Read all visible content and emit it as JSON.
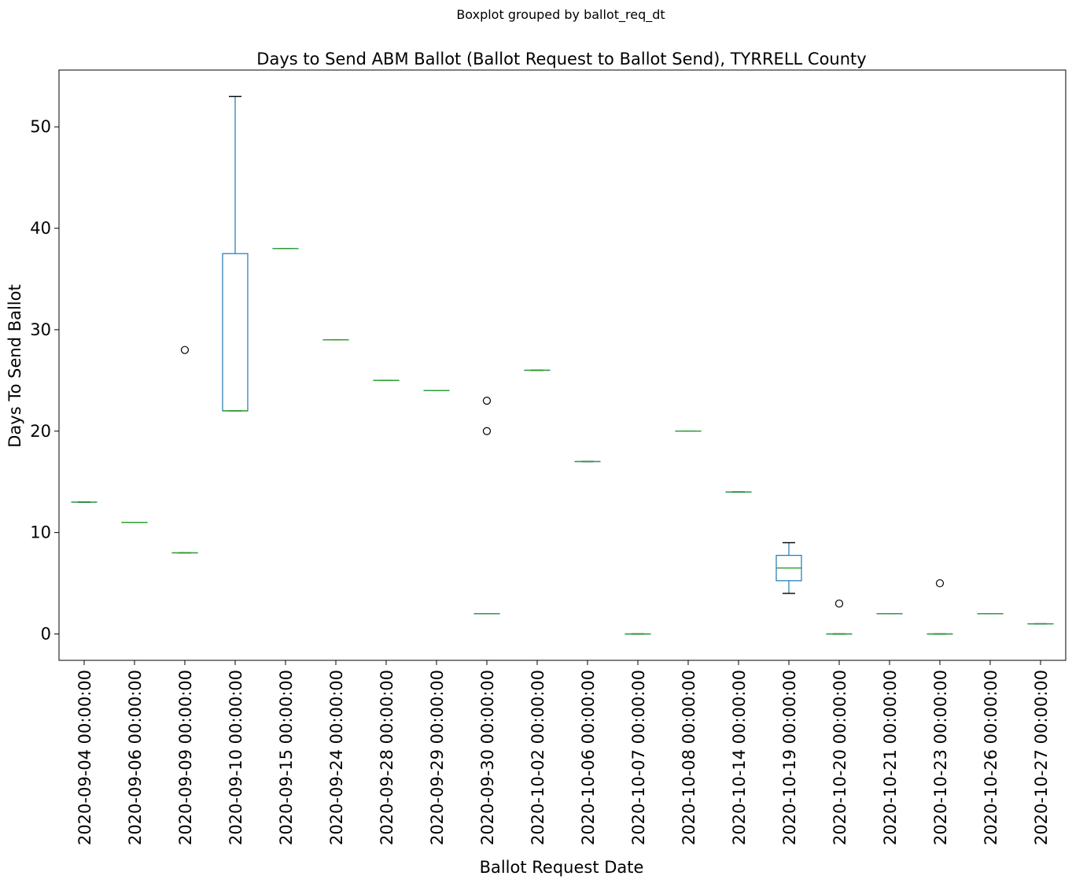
{
  "chart_data": {
    "type": "boxplot",
    "suptitle": "Boxplot grouped by ballot_req_dt",
    "title": "Days to Send ABM Ballot (Ballot Request to Ballot Send), TYRRELL County",
    "xlabel": "Ballot Request Date",
    "ylabel": "Days To Send Ballot",
    "ylim": [
      -2.6,
      55.6
    ],
    "yticks": [
      0,
      10,
      20,
      30,
      40,
      50
    ],
    "grid": false,
    "colors": {
      "box": "#1f77b4",
      "median": "#2ca02c",
      "whisker": "#1f77b4",
      "cap": "#000000",
      "flier": "#000000"
    },
    "categories": [
      "2020-09-04 00:00:00",
      "2020-09-06 00:00:00",
      "2020-09-09 00:00:00",
      "2020-09-10 00:00:00",
      "2020-09-15 00:00:00",
      "2020-09-24 00:00:00",
      "2020-09-28 00:00:00",
      "2020-09-29 00:00:00",
      "2020-09-30 00:00:00",
      "2020-10-02 00:00:00",
      "2020-10-06 00:00:00",
      "2020-10-07 00:00:00",
      "2020-10-08 00:00:00",
      "2020-10-14 00:00:00",
      "2020-10-19 00:00:00",
      "2020-10-20 00:00:00",
      "2020-10-21 00:00:00",
      "2020-10-23 00:00:00",
      "2020-10-26 00:00:00",
      "2020-10-27 00:00:00"
    ],
    "boxes": [
      {
        "whislo": 13,
        "q1": 13,
        "med": 13,
        "q3": 13,
        "whishi": 13,
        "fliers": []
      },
      {
        "whislo": 11,
        "q1": 11,
        "med": 11,
        "q3": 11,
        "whishi": 11,
        "fliers": []
      },
      {
        "whislo": 8,
        "q1": 8,
        "med": 8,
        "q3": 8,
        "whishi": 8,
        "fliers": [
          28
        ]
      },
      {
        "whislo": 22,
        "q1": 22,
        "med": 22,
        "q3": 37.5,
        "whishi": 53,
        "fliers": []
      },
      {
        "whislo": 38,
        "q1": 38,
        "med": 38,
        "q3": 38,
        "whishi": 38,
        "fliers": []
      },
      {
        "whislo": 29,
        "q1": 29,
        "med": 29,
        "q3": 29,
        "whishi": 29,
        "fliers": []
      },
      {
        "whislo": 25,
        "q1": 25,
        "med": 25,
        "q3": 25,
        "whishi": 25,
        "fliers": []
      },
      {
        "whislo": 24,
        "q1": 24,
        "med": 24,
        "q3": 24,
        "whishi": 24,
        "fliers": []
      },
      {
        "whislo": 2,
        "q1": 2,
        "med": 2,
        "q3": 2,
        "whishi": 2,
        "fliers": [
          20,
          23
        ]
      },
      {
        "whislo": 26,
        "q1": 26,
        "med": 26,
        "q3": 26,
        "whishi": 26,
        "fliers": []
      },
      {
        "whislo": 17,
        "q1": 17,
        "med": 17,
        "q3": 17,
        "whishi": 17,
        "fliers": []
      },
      {
        "whislo": 0,
        "q1": 0,
        "med": 0,
        "q3": 0,
        "whishi": 0,
        "fliers": []
      },
      {
        "whislo": 20,
        "q1": 20,
        "med": 20,
        "q3": 20,
        "whishi": 20,
        "fliers": []
      },
      {
        "whislo": 14,
        "q1": 14,
        "med": 14,
        "q3": 14,
        "whishi": 14,
        "fliers": []
      },
      {
        "whislo": 4,
        "q1": 5.25,
        "med": 6.5,
        "q3": 7.75,
        "whishi": 9,
        "fliers": []
      },
      {
        "whislo": 0,
        "q1": 0,
        "med": 0,
        "q3": 0,
        "whishi": 0,
        "fliers": [
          3
        ]
      },
      {
        "whislo": 2,
        "q1": 2,
        "med": 2,
        "q3": 2,
        "whishi": 2,
        "fliers": []
      },
      {
        "whislo": 0,
        "q1": 0,
        "med": 0,
        "q3": 0,
        "whishi": 0,
        "fliers": [
          5
        ]
      },
      {
        "whislo": 2,
        "q1": 2,
        "med": 2,
        "q3": 2,
        "whishi": 2,
        "fliers": []
      },
      {
        "whislo": 1,
        "q1": 1,
        "med": 1,
        "q3": 1,
        "whishi": 1,
        "fliers": []
      }
    ]
  }
}
